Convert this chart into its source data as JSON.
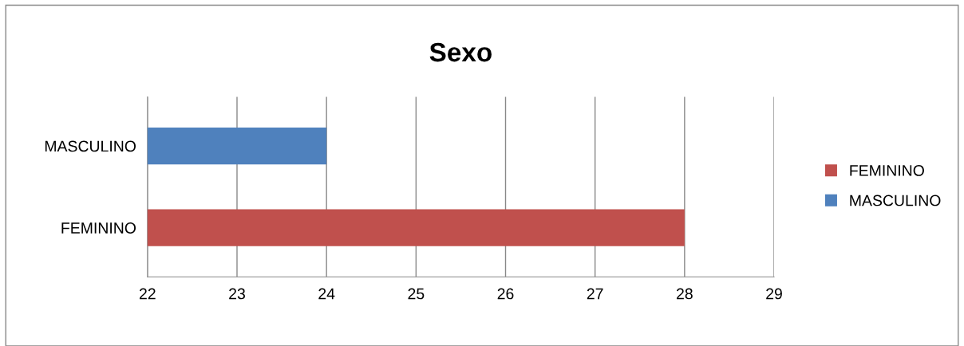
{
  "chart_data": {
    "type": "bar",
    "orientation": "horizontal",
    "title": "Sexo",
    "categories": [
      "MASCULINO",
      "FEMININO"
    ],
    "series": [
      {
        "name": "FEMININO",
        "color": "#c0504d",
        "values": [
          null,
          28
        ]
      },
      {
        "name": "MASCULINO",
        "color": "#4f81bd",
        "values": [
          24,
          null
        ]
      }
    ],
    "xlim": [
      22,
      29
    ],
    "xticks": [
      22,
      23,
      24,
      25,
      26,
      27,
      28,
      29
    ],
    "grid": "x",
    "legend": "right"
  }
}
